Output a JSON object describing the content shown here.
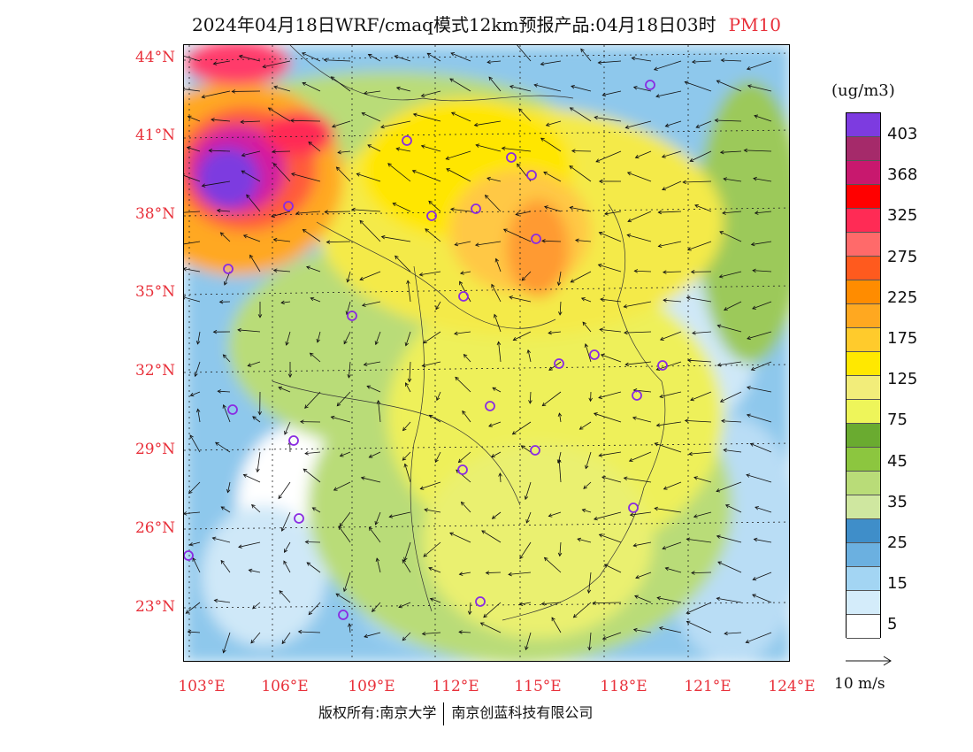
{
  "title": {
    "text": "2024年04月18日WRF/cmaq模式12km预报产品:04月18日03时",
    "variable": "PM10"
  },
  "lat_labels": [
    "44°N",
    "41°N",
    "38°N",
    "35°N",
    "32°N",
    "29°N",
    "26°N",
    "23°N"
  ],
  "lon_labels": [
    "103°E",
    "106°E",
    "109°E",
    "112°E",
    "115°E",
    "118°E",
    "121°E",
    "124°E"
  ],
  "colorbar": {
    "unit": "(ug/m3)",
    "colors_top_to_bottom": [
      "#7d3be0",
      "#a52a6a",
      "#c8186e",
      "#ff0000",
      "#ff2b55",
      "#ff6a6a",
      "#ff5a1e",
      "#ff8c00",
      "#ffa820",
      "#ffcb2c",
      "#ffe800",
      "#f2ed7a",
      "#eef55a",
      "#6aab30",
      "#8cc63f",
      "#b9dc78",
      "#cfe7a0",
      "#3f8ec9",
      "#6bb0e0",
      "#a3d5f3",
      "#d4ecfa",
      "#ffffff"
    ],
    "labels": [
      "403",
      "368",
      "325",
      "275",
      "225",
      "175",
      "125",
      "75",
      "45",
      "35",
      "25",
      "15",
      "5"
    ]
  },
  "wind_reference": {
    "label": "10 m/s"
  },
  "footer": {
    "copyright": "版权所有:南京大学",
    "company": "南京创蓝科技有限公司"
  }
}
